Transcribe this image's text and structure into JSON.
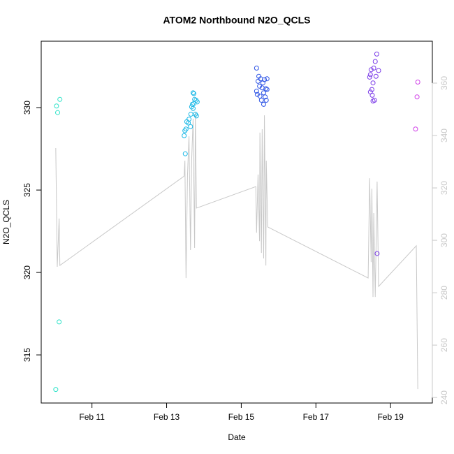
{
  "chart_data": {
    "title": "ATOM2 Northbound N2O_QCLS",
    "x_label": "Date",
    "y_label": "N2O_QCLS",
    "xlim": [
      9.64,
      20.12
    ],
    "ylim": [
      312.08,
      334.03
    ],
    "y2lim": [
      237.9,
      376
    ],
    "xticks": [
      {
        "value": 11,
        "label": "Feb 11"
      },
      {
        "value": 13,
        "label": "Feb 13"
      },
      {
        "value": 15,
        "label": "Feb 15"
      },
      {
        "value": 17,
        "label": "Feb 17"
      },
      {
        "value": 19,
        "label": "Feb 19"
      }
    ],
    "yticks": [
      315,
      320,
      325,
      330
    ],
    "y2ticks": [
      240,
      260,
      280,
      300,
      320,
      340,
      360
    ],
    "y2_color": "#c8c8c8",
    "layers": [
      {
        "type": "line",
        "axis": "y2",
        "color": "#c8c8c8",
        "x": [
          10.03,
          10.07,
          10.12,
          10.14,
          13.47,
          13.49,
          13.52,
          13.56,
          13.6,
          13.64,
          13.67,
          13.71,
          13.75,
          13.77,
          13.8,
          15.39,
          15.41,
          15.45,
          15.49,
          15.5,
          15.54,
          15.56,
          15.6,
          15.62,
          15.66,
          15.67,
          15.71,
          18.4,
          18.44,
          18.48,
          18.5,
          18.53,
          18.55,
          18.59,
          18.64,
          18.68,
          19.69,
          19.73
        ],
        "values": [
          335.2,
          289.9,
          308.3,
          290.4,
          324.5,
          330.4,
          285.6,
          325.1,
          339.7,
          296.3,
          330.4,
          346.4,
          297.1,
          349.1,
          312.3,
          320.5,
          302.9,
          325.1,
          299.7,
          341.1,
          295.2,
          342.4,
          293.1,
          347.7,
          290.4,
          330.4,
          305.1,
          285.6,
          323.7,
          291.7,
          319.7,
          278.4,
          310.4,
          278.4,
          322.4,
          282.4,
          297.9,
          243.2
        ]
      },
      {
        "type": "scatter",
        "x": [
          10.03,
          10.05,
          10.08,
          10.14,
          10.12,
          13.5,
          13.47,
          13.49,
          13.52,
          13.54,
          13.58,
          13.6,
          13.64,
          13.65,
          13.67,
          13.69,
          13.71,
          13.73,
          13.73,
          13.75,
          13.77,
          13.79,
          13.8,
          13.82,
          13.71,
          15.41,
          15.41,
          15.43,
          15.45,
          15.47,
          15.49,
          15.5,
          15.52,
          15.54,
          15.56,
          15.58,
          15.6,
          15.6,
          15.62,
          15.64,
          15.66,
          15.67,
          15.69,
          15.69,
          18.44,
          18.46,
          18.48,
          18.5,
          18.51,
          18.53,
          18.55,
          18.57,
          18.59,
          18.61,
          18.63,
          18.64,
          18.68,
          18.53,
          18.46,
          19.67,
          19.71,
          19.73
        ],
        "values": [
          312.9,
          330.1,
          329.7,
          330.5,
          317.0,
          327.2,
          328.3,
          328.6,
          328.7,
          329.15,
          329.07,
          329.3,
          328.85,
          329.6,
          330.05,
          330.2,
          329.95,
          330.85,
          330.25,
          330.5,
          329.6,
          330.45,
          329.5,
          330.35,
          330.9,
          332.4,
          331.0,
          330.8,
          331.6,
          331.9,
          331.3,
          330.7,
          331.75,
          330.45,
          331.2,
          331.5,
          330.9,
          330.2,
          331.7,
          330.65,
          331.15,
          330.45,
          331.75,
          331.1,
          331.85,
          330.95,
          332.3,
          331.1,
          330.75,
          331.5,
          332.4,
          330.45,
          332.8,
          331.9,
          333.25,
          321.15,
          332.25,
          330.4,
          332.0,
          328.7,
          330.65,
          331.55
        ],
        "colors": [
          "#2de3c8",
          "#2de3c8",
          "#2de3c8",
          "#2de3c8",
          "#2de3c8",
          "#1ab8e6",
          "#1ab8e6",
          "#1ab8e6",
          "#1ab8e6",
          "#1ab8e6",
          "#1ab8e6",
          "#1ab8e6",
          "#1ab8e6",
          "#1ab8e6",
          "#1ab8e6",
          "#1ab8e6",
          "#1ab8e6",
          "#1ab8e6",
          "#1ab8e6",
          "#1ab8e6",
          "#1ab8e6",
          "#1ab8e6",
          "#1ab8e6",
          "#1ab8e6",
          "#1ab8e6",
          "#2e55e6",
          "#2e55e6",
          "#2e55e6",
          "#2e55e6",
          "#2e55e6",
          "#2e55e6",
          "#2e55e6",
          "#2e55e6",
          "#2e55e6",
          "#2e55e6",
          "#2e55e6",
          "#2e55e6",
          "#2e55e6",
          "#2e55e6",
          "#2e55e6",
          "#2e55e6",
          "#2e55e6",
          "#2e55e6",
          "#2e55e6",
          "#7a3ae8",
          "#7a3ae8",
          "#7a3ae8",
          "#7a3ae8",
          "#7a3ae8",
          "#7a3ae8",
          "#7a3ae8",
          "#7a3ae8",
          "#7a3ae8",
          "#7a3ae8",
          "#7a3ae8",
          "#7a3ae8",
          "#7a3ae8",
          "#7a3ae8",
          "#7a3ae8",
          "#d040e8",
          "#d040e8",
          "#d040e8"
        ]
      }
    ]
  }
}
